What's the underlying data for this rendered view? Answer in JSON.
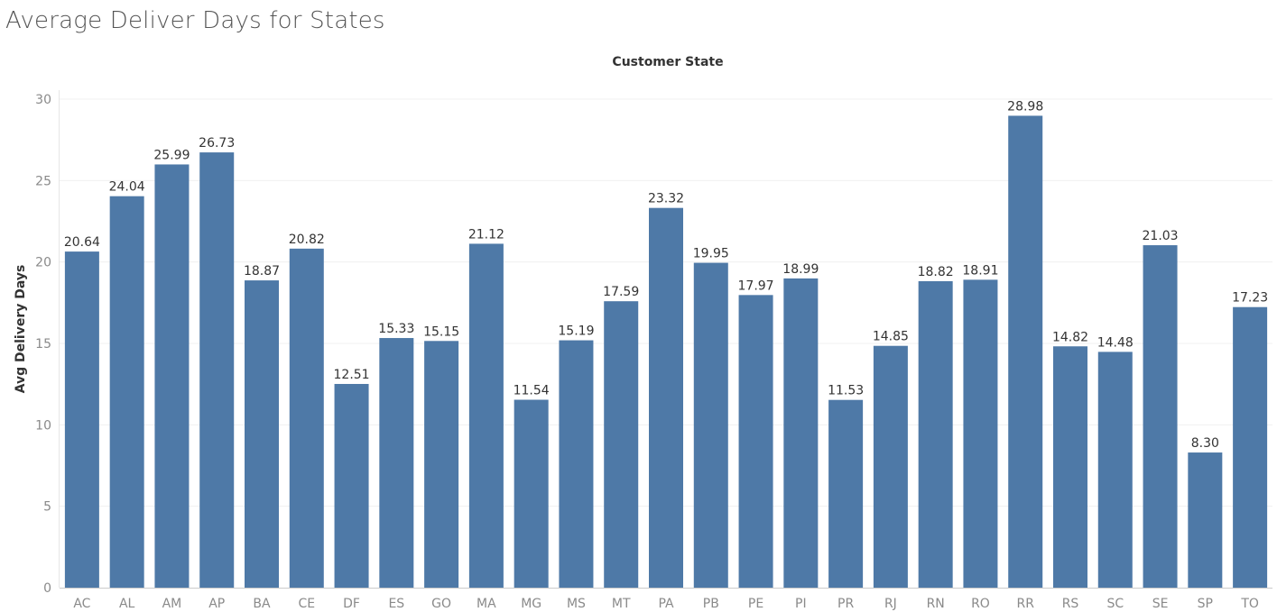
{
  "page": {
    "title": "Average Deliver Days for States"
  },
  "chart_data": {
    "type": "bar",
    "title": "Average Deliver Days for States",
    "column_header": "Customer State",
    "xlabel": "",
    "ylabel": "Avg Delivery Days",
    "ylim": [
      0,
      30
    ],
    "yticks": [
      0,
      5,
      10,
      15,
      20,
      25,
      30
    ],
    "grid": true,
    "bar_color": "#4e79a7",
    "categories": [
      "AC",
      "AL",
      "AM",
      "AP",
      "BA",
      "CE",
      "DF",
      "ES",
      "GO",
      "MA",
      "MG",
      "MS",
      "MT",
      "PA",
      "PB",
      "PE",
      "PI",
      "PR",
      "RJ",
      "RN",
      "RO",
      "RR",
      "RS",
      "SC",
      "SE",
      "SP",
      "TO"
    ],
    "values": [
      20.64,
      24.04,
      25.99,
      26.73,
      18.87,
      20.82,
      12.51,
      15.33,
      15.15,
      21.12,
      11.54,
      15.19,
      17.59,
      23.32,
      19.95,
      17.97,
      18.99,
      11.53,
      14.85,
      18.82,
      18.91,
      28.98,
      14.82,
      14.48,
      21.03,
      8.3,
      17.23
    ],
    "data_labels": [
      "20.64",
      "24.04",
      "25.99",
      "26.73",
      "18.87",
      "20.82",
      "12.51",
      "15.33",
      "15.15",
      "21.12",
      "11.54",
      "15.19",
      "17.59",
      "23.32",
      "19.95",
      "17.97",
      "18.99",
      "11.53",
      "14.85",
      "18.82",
      "18.91",
      "28.98",
      "14.82",
      "14.48",
      "21.03",
      "8.30",
      "17.23"
    ]
  }
}
